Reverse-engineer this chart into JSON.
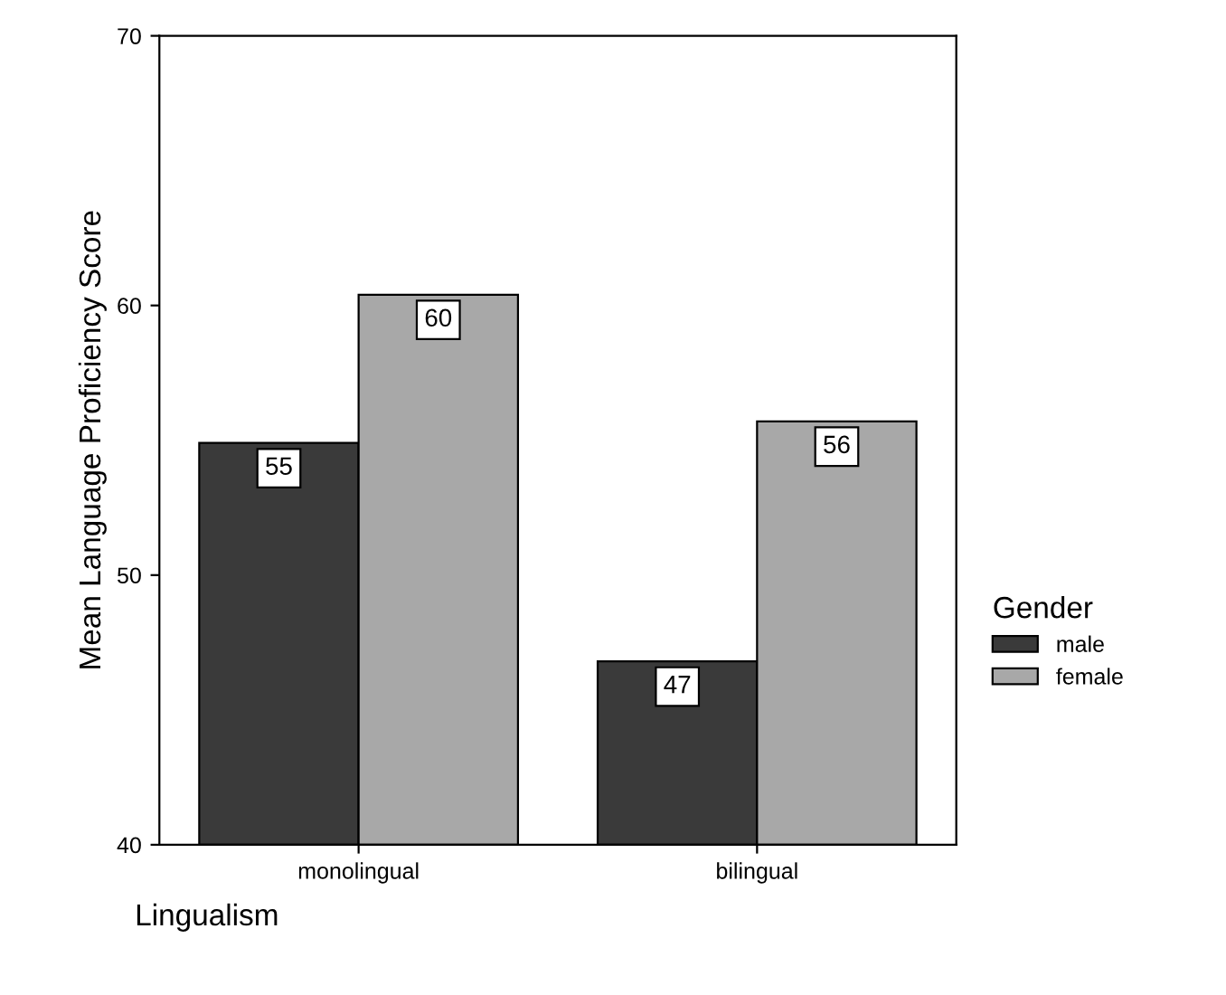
{
  "chart_data": {
    "type": "bar",
    "xlabel": "Lingualism",
    "ylabel": "Mean Language Proficiency Score",
    "legend_title": "Gender",
    "categories": [
      "monolingual",
      "bilingual"
    ],
    "series": [
      {
        "name": "male",
        "color": "#3a3a3a",
        "values": [
          54.9,
          46.8
        ],
        "value_labels": [
          "55",
          "47"
        ]
      },
      {
        "name": "female",
        "color": "#a8a8a8",
        "values": [
          60.4,
          55.7
        ],
        "value_labels": [
          "60",
          "56"
        ]
      }
    ],
    "ylim": [
      40,
      70
    ],
    "yticks": [
      40,
      50,
      60,
      70
    ],
    "legend": "right"
  }
}
